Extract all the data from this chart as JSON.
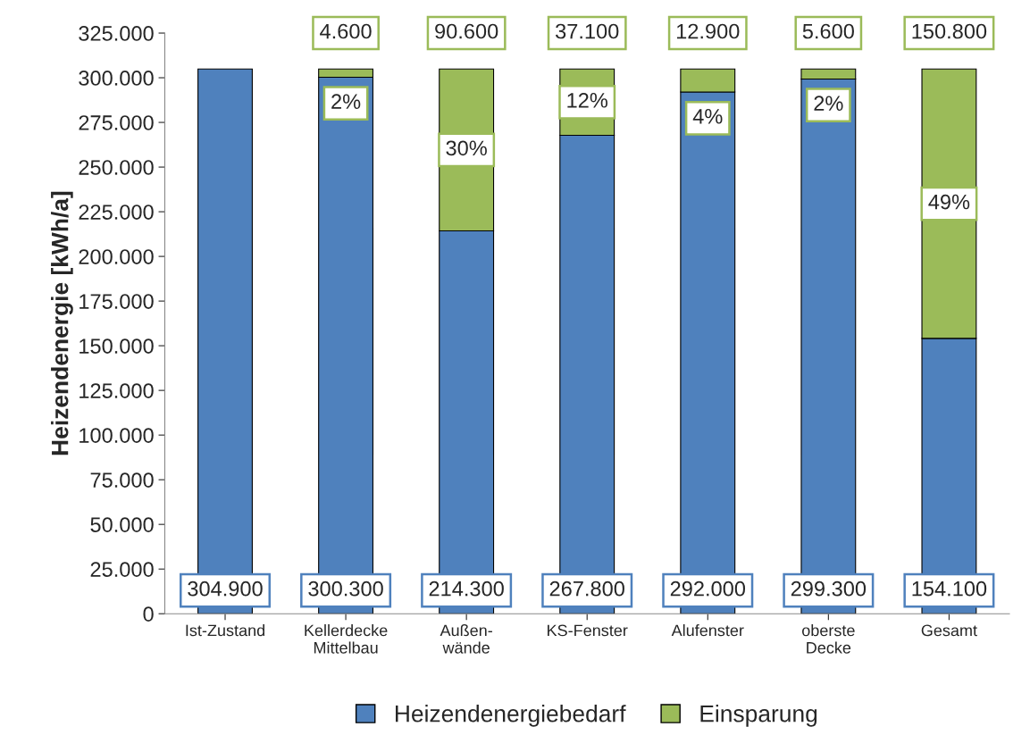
{
  "chart_data": {
    "type": "bar",
    "stacked": true,
    "ylabel": "Heizendenergie [kWh/a]",
    "categories": [
      "Ist-Zustand",
      "Kellerdecke\nMittelbau",
      "Außen-\nwände",
      "KS-Fenster",
      "Alufenster",
      "oberste\nDecke",
      "Gesamt"
    ],
    "series": [
      {
        "name": "Heizendenergiebedarf",
        "color": "#4f81bd",
        "values": [
          304900,
          300300,
          214300,
          267800,
          292000,
          299300,
          154100
        ],
        "value_labels": [
          "304.900",
          "300.300",
          "214.300",
          "267.800",
          "292.000",
          "299.300",
          "154.100"
        ]
      },
      {
        "name": "Einsparung",
        "color": "#9bbb59",
        "values": [
          null,
          4600,
          90600,
          37100,
          12900,
          5600,
          150800
        ],
        "value_labels": [
          null,
          "4.600",
          "90.600",
          "37.100",
          "12.900",
          "5.600",
          "150.800"
        ]
      }
    ],
    "annotations": [
      "2%",
      "30%",
      "12%",
      "4%",
      "2%",
      "49%"
    ],
    "ylim": [
      0,
      325000
    ],
    "yticks": [
      0,
      {
        "value": 25000,
        "label": "25.000"
      },
      {
        "value": 50000,
        "label": "50.000"
      },
      {
        "value": 75000,
        "label": "75.000"
      },
      {
        "value": 100000,
        "label": "100.000"
      },
      {
        "value": 125000,
        "label": "125.000"
      },
      {
        "value": 150000,
        "label": "150.000"
      },
      {
        "value": 175000,
        "label": "175.000"
      },
      {
        "value": 200000,
        "label": "200.000"
      },
      {
        "value": 225000,
        "label": "225.000"
      },
      {
        "value": 250000,
        "label": "250.000"
      },
      {
        "value": 275000,
        "label": "275.000"
      },
      {
        "value": 300000,
        "label": "300.000"
      },
      {
        "value": 325000,
        "label": "325.000"
      }
    ],
    "grid": false,
    "legend": "bottom"
  }
}
